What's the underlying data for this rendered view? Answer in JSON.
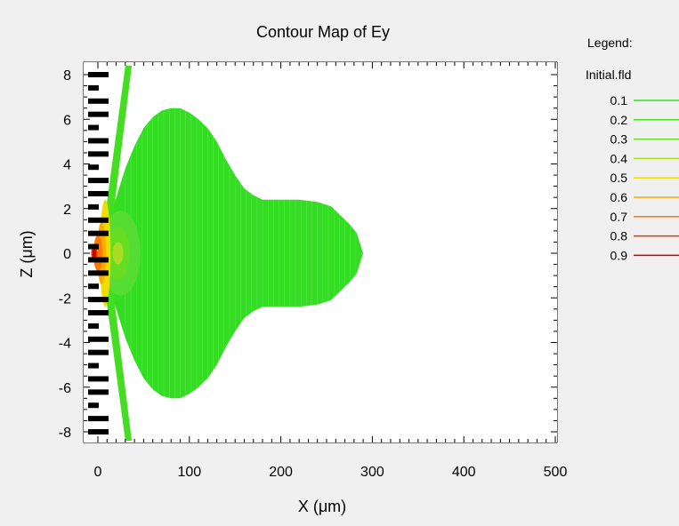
{
  "chart_data": {
    "type": "contour",
    "title": "Contour Map of Ey",
    "xlabel": "X (μm)",
    "ylabel": "Z (μm)",
    "xlim": [
      -10,
      500
    ],
    "ylim": [
      -8.6,
      8.6
    ],
    "x_ticks": [
      0,
      100,
      200,
      300,
      400,
      500
    ],
    "y_ticks": [
      8,
      6,
      4,
      2,
      0,
      -2,
      -4,
      -6,
      -8
    ],
    "legend": {
      "header": "Legend:",
      "file": "Initial.fld",
      "levels": [
        {
          "label": "0.1",
          "color": "#33dd22"
        },
        {
          "label": "0.2",
          "color": "#44dd22"
        },
        {
          "label": "0.3",
          "color": "#66dd22"
        },
        {
          "label": "0.4",
          "color": "#aadd22"
        },
        {
          "label": "0.5",
          "color": "#eedd00"
        },
        {
          "label": "0.6",
          "color": "#ffaa00"
        },
        {
          "label": "0.7",
          "color": "#ff7700"
        },
        {
          "label": "0.8",
          "color": "#ee3300"
        },
        {
          "label": "0.9",
          "color": "#cc0000"
        }
      ]
    },
    "field_envelope": [
      {
        "x": 10,
        "z": 1.2
      },
      {
        "x": 20,
        "z": 2.5
      },
      {
        "x": 30,
        "z": 3.8
      },
      {
        "x": 40,
        "z": 4.8
      },
      {
        "x": 50,
        "z": 5.6
      },
      {
        "x": 60,
        "z": 6.1
      },
      {
        "x": 70,
        "z": 6.4
      },
      {
        "x": 80,
        "z": 6.5
      },
      {
        "x": 90,
        "z": 6.5
      },
      {
        "x": 100,
        "z": 6.3
      },
      {
        "x": 110,
        "z": 6.0
      },
      {
        "x": 120,
        "z": 5.6
      },
      {
        "x": 130,
        "z": 5.0
      },
      {
        "x": 140,
        "z": 4.2
      },
      {
        "x": 150,
        "z": 3.5
      },
      {
        "x": 160,
        "z": 2.9
      },
      {
        "x": 170,
        "z": 2.6
      },
      {
        "x": 180,
        "z": 2.4
      },
      {
        "x": 200,
        "z": 2.4
      },
      {
        "x": 220,
        "z": 2.4
      },
      {
        "x": 240,
        "z": 2.3
      },
      {
        "x": 255,
        "z": 2.1
      },
      {
        "x": 265,
        "z": 1.7
      },
      {
        "x": 275,
        "z": 1.3
      },
      {
        "x": 283,
        "z": 0.9
      },
      {
        "x": 290,
        "z": 0.0
      }
    ],
    "hot_spot": {
      "x": -4,
      "z": 0,
      "level": 0.9
    }
  }
}
